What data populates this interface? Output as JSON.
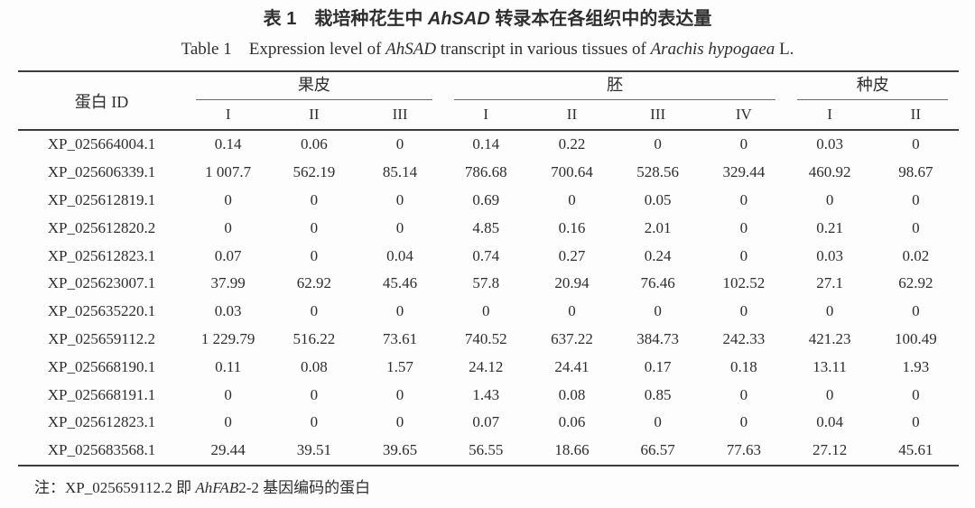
{
  "titles": {
    "zh": {
      "prefix": "表 1　栽培种花生中 ",
      "gene": "AhSAD",
      "suffix": " 转录本在各组织中的表达量"
    },
    "en": {
      "prefix": "Table 1 Expression level of ",
      "gene": "AhSAD",
      "middle": " transcript in various tissues of ",
      "species": "Arachis hypogaea",
      "suffix": " L."
    }
  },
  "table": {
    "id_header": "蛋白 ID",
    "groups": [
      {
        "label": "果皮",
        "subcols": [
          "I",
          "II",
          "III"
        ]
      },
      {
        "label": "胚",
        "subcols": [
          "I",
          "II",
          "III",
          "IV"
        ]
      },
      {
        "label": "种皮",
        "subcols": [
          "I",
          "II"
        ]
      }
    ],
    "rows": [
      {
        "id": "XP_025664004.1",
        "values": [
          "0.14",
          "0.06",
          "0",
          "0.14",
          "0.22",
          "0",
          "0",
          "0.03",
          "0"
        ]
      },
      {
        "id": "XP_025606339.1",
        "values": [
          "1 007.7",
          "562.19",
          "85.14",
          "786.68",
          "700.64",
          "528.56",
          "329.44",
          "460.92",
          "98.67"
        ]
      },
      {
        "id": "XP_025612819.1",
        "values": [
          "0",
          "0",
          "0",
          "0.69",
          "0",
          "0.05",
          "0",
          "0",
          "0"
        ]
      },
      {
        "id": "XP_025612820.2",
        "values": [
          "0",
          "0",
          "0",
          "4.85",
          "0.16",
          "2.01",
          "0",
          "0.21",
          "0"
        ]
      },
      {
        "id": "XP_025612823.1",
        "values": [
          "0.07",
          "0",
          "0.04",
          "0.74",
          "0.27",
          "0.24",
          "0",
          "0.03",
          "0.02"
        ]
      },
      {
        "id": "XP_025623007.1",
        "values": [
          "37.99",
          "62.92",
          "45.46",
          "57.8",
          "20.94",
          "76.46",
          "102.52",
          "27.1",
          "62.92"
        ]
      },
      {
        "id": "XP_025635220.1",
        "values": [
          "0.03",
          "0",
          "0",
          "0",
          "0",
          "0",
          "0",
          "0",
          "0"
        ]
      },
      {
        "id": "XP_025659112.2",
        "values": [
          "1 229.79",
          "516.22",
          "73.61",
          "740.52",
          "637.22",
          "384.73",
          "242.33",
          "421.23",
          "100.49"
        ]
      },
      {
        "id": "XP_025668190.1",
        "values": [
          "0.11",
          "0.08",
          "1.57",
          "24.12",
          "24.41",
          "0.17",
          "0.18",
          "13.11",
          "1.93"
        ]
      },
      {
        "id": "XP_025668191.1",
        "values": [
          "0",
          "0",
          "0",
          "1.43",
          "0.08",
          "0.85",
          "0",
          "0",
          "0"
        ]
      },
      {
        "id": "XP_025612823.1",
        "values": [
          "0",
          "0",
          "0",
          "0.07",
          "0.06",
          "0",
          "0",
          "0.04",
          "0"
        ]
      },
      {
        "id": "XP_025683568.1",
        "values": [
          "29.44",
          "39.51",
          "39.65",
          "56.55",
          "18.66",
          "66.57",
          "77.63",
          "27.12",
          "45.61"
        ]
      }
    ]
  },
  "footnote": {
    "prefix": "注：XP_025659112.2 即 ",
    "gene": "AhFAB",
    "suffix": "2-2 基因编码的蛋白"
  },
  "colors": {
    "text": "#2e2e2e",
    "rule_heavy": "#3d3d3d",
    "rule_light": "#6a6a6a",
    "background": "#fdfdfd"
  }
}
